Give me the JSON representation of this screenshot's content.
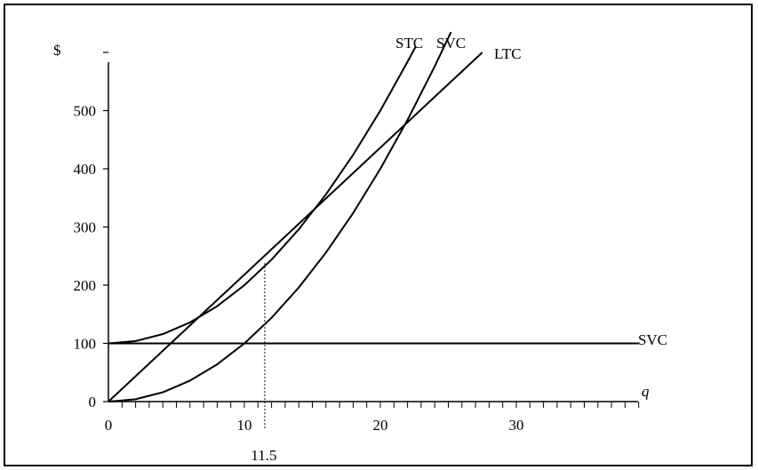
{
  "chart_data": {
    "type": "line",
    "xlabel": "q",
    "ylabel": "$",
    "xlim": [
      0,
      39
    ],
    "ylim": [
      0,
      600
    ],
    "x_ticks": [
      "0",
      "10",
      "20",
      "30"
    ],
    "y_ticks": [
      "0",
      "100",
      "200",
      "300",
      "400",
      "500"
    ],
    "grid": false,
    "curve_labels": {
      "stc": "STC",
      "svc": "SVC",
      "ltc": "LTC",
      "fixed": "SVC"
    },
    "annotation": {
      "label": "11.5",
      "x": 11.5,
      "y": 238
    },
    "series": [
      {
        "name": "STC",
        "x": [
          0,
          2,
          4,
          6,
          8,
          10,
          12,
          14,
          16,
          18,
          20,
          22,
          22.6
        ],
        "y": [
          100,
          104,
          116,
          136,
          164,
          200,
          244,
          296,
          356,
          424,
          500,
          584,
          610
        ]
      },
      {
        "name": "SVC",
        "x": [
          0,
          2,
          4,
          6,
          8,
          10,
          12,
          14,
          16,
          18,
          20,
          22,
          24,
          25.2
        ],
        "y": [
          0,
          4,
          16,
          36,
          64,
          100,
          144,
          196,
          256,
          324,
          400,
          484,
          576,
          635
        ]
      },
      {
        "name": "LTC",
        "x": [
          0,
          27.5
        ],
        "y": [
          0,
          600
        ]
      },
      {
        "name": "SVC",
        "x": [
          0,
          39
        ],
        "y": [
          100,
          100
        ]
      }
    ]
  }
}
